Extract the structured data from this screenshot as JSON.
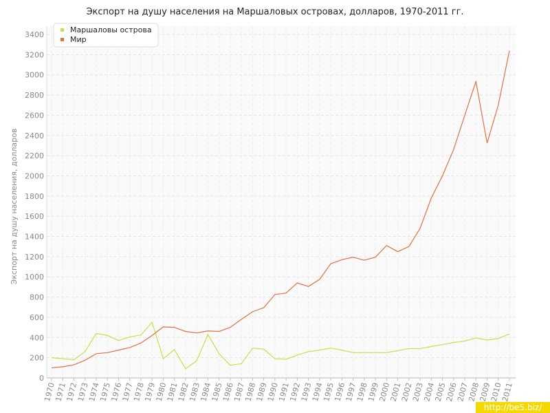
{
  "chart_data": {
    "type": "line",
    "title": "Экспорт на душу населения на Маршаловых островах, долларов, 1970-2011 гг.",
    "y_label": "Экспорт на душу населения, долларов",
    "watermark": "http://be5.biz/",
    "x": [
      1970,
      1971,
      1972,
      1973,
      1974,
      1975,
      1976,
      1977,
      1978,
      1979,
      1980,
      1981,
      1982,
      1983,
      1984,
      1985,
      1986,
      1987,
      1988,
      1989,
      1990,
      1991,
      1992,
      1993,
      1994,
      1995,
      1996,
      1997,
      1998,
      1999,
      2000,
      2001,
      2002,
      2003,
      2004,
      2005,
      2006,
      2007,
      2008,
      2009,
      2010,
      2011
    ],
    "xlim": [
      1970,
      2011
    ],
    "ylim": [
      0,
      3400
    ],
    "yticks": [
      0,
      200,
      400,
      600,
      800,
      1000,
      1200,
      1400,
      1600,
      1800,
      2000,
      2200,
      2400,
      2600,
      2800,
      3000,
      3200,
      3400
    ],
    "grid": true,
    "legend": "top-left",
    "series": [
      {
        "name": "Маршаловы острова",
        "color": "#c5e04a",
        "values": [
          200,
          190,
          180,
          260,
          440,
          420,
          370,
          405,
          425,
          550,
          190,
          280,
          90,
          170,
          430,
          240,
          125,
          140,
          295,
          285,
          190,
          185,
          225,
          260,
          275,
          295,
          275,
          250,
          250,
          250,
          250,
          270,
          290,
          290,
          310,
          330,
          350,
          365,
          395,
          375,
          390,
          435
        ]
      },
      {
        "name": "Мир",
        "color": "#e07040",
        "values": [
          100,
          110,
          130,
          175,
          240,
          250,
          275,
          300,
          345,
          420,
          505,
          500,
          460,
          445,
          465,
          460,
          500,
          580,
          655,
          695,
          825,
          840,
          940,
          905,
          975,
          1130,
          1170,
          1195,
          1165,
          1195,
          1310,
          1250,
          1300,
          1480,
          1780,
          2000,
          2260,
          2600,
          2935,
          2325,
          2700,
          3240
        ]
      }
    ]
  }
}
